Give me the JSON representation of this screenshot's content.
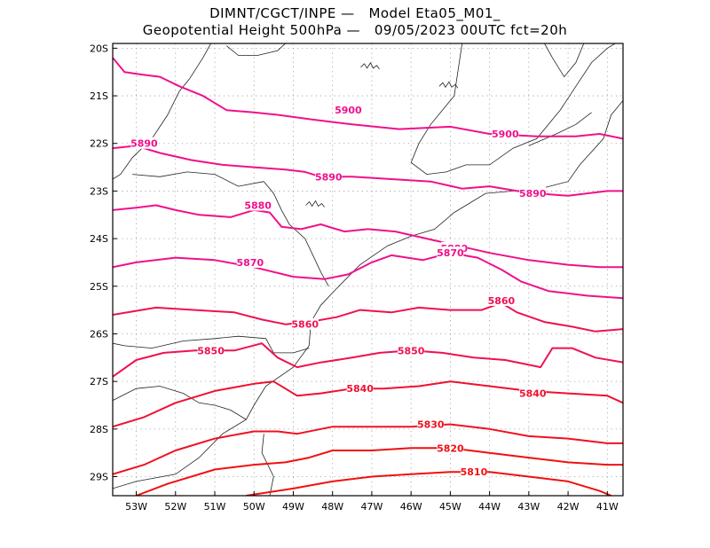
{
  "title": {
    "line1": "DIMNT/CGCT/INPE —   Model Eta05_M01_",
    "line2": "Geopotential Height 500hPa —   09/05/2023 00UTC fct=20h"
  },
  "axes": {
    "lat_labels": [
      "20S",
      "21S",
      "22S",
      "23S",
      "24S",
      "25S",
      "26S",
      "27S",
      "28S",
      "29S"
    ],
    "lon_labels": [
      "53W",
      "52W",
      "51W",
      "50W",
      "49W",
      "48W",
      "47W",
      "46W",
      "45W",
      "44W",
      "43W",
      "42W",
      "41W"
    ]
  },
  "chart_data": {
    "type": "contour-map",
    "variable": "Geopotential Height 500hPa",
    "lon_range": [
      -53.6,
      -40.6
    ],
    "lat_range": [
      -29.4,
      -19.9
    ],
    "grid": true,
    "colors": {
      "5900": "#f0108c",
      "5890": "#f0108c",
      "5880": "#f0108c",
      "5870": "#f0108c",
      "5860": "#f01050",
      "5850": "#f01050",
      "5840": "#f01030",
      "5830": "#f01020",
      "5820": "#f01010",
      "5810": "#f01010"
    },
    "contours": [
      {
        "level": 5900,
        "label": "5900",
        "label_positions": [
          [
            -47.6,
            -21.3
          ],
          [
            -43.6,
            -21.8
          ]
        ],
        "points": [
          [
            -53.6,
            -20.2
          ],
          [
            -53.3,
            -20.5
          ],
          [
            -52.9,
            -20.55
          ],
          [
            -52.4,
            -20.6
          ],
          [
            -51.9,
            -20.8
          ],
          [
            -51.3,
            -21.0
          ],
          [
            -50.7,
            -21.3
          ],
          [
            -50.0,
            -21.35
          ],
          [
            -49.4,
            -21.4
          ],
          [
            -48.5,
            -21.5
          ],
          [
            -47.5,
            -21.6
          ],
          [
            -46.3,
            -21.7
          ],
          [
            -45.0,
            -21.65
          ],
          [
            -44.0,
            -21.8
          ],
          [
            -42.8,
            -21.85
          ],
          [
            -41.8,
            -21.85
          ],
          [
            -41.2,
            -21.8
          ],
          [
            -40.6,
            -21.9
          ]
        ]
      },
      {
        "level": 5890,
        "label": "5890",
        "label_positions": [
          [
            -52.8,
            -22.0
          ],
          [
            -48.1,
            -22.7
          ],
          [
            -42.9,
            -23.05
          ]
        ],
        "points": [
          [
            -53.6,
            -22.1
          ],
          [
            -53.0,
            -22.05
          ],
          [
            -52.4,
            -22.2
          ],
          [
            -51.6,
            -22.35
          ],
          [
            -50.8,
            -22.45
          ],
          [
            -50.0,
            -22.5
          ],
          [
            -49.2,
            -22.55
          ],
          [
            -48.7,
            -22.6
          ],
          [
            -48.3,
            -22.7
          ],
          [
            -47.5,
            -22.7
          ],
          [
            -46.5,
            -22.75
          ],
          [
            -45.5,
            -22.8
          ],
          [
            -44.7,
            -22.95
          ],
          [
            -44.0,
            -22.9
          ],
          [
            -43.3,
            -23.0
          ],
          [
            -42.8,
            -23.05
          ],
          [
            -42.0,
            -23.1
          ],
          [
            -41.0,
            -23.0
          ],
          [
            -40.6,
            -23.0
          ]
        ]
      },
      {
        "level": 5880,
        "label": "5880",
        "label_positions": [
          [
            -49.9,
            -23.3
          ],
          [
            -44.9,
            -24.2
          ]
        ],
        "points": [
          [
            -53.6,
            -23.4
          ],
          [
            -53.0,
            -23.35
          ],
          [
            -52.5,
            -23.3
          ],
          [
            -52.0,
            -23.4
          ],
          [
            -51.4,
            -23.5
          ],
          [
            -50.6,
            -23.55
          ],
          [
            -50.0,
            -23.4
          ],
          [
            -49.6,
            -23.45
          ],
          [
            -49.3,
            -23.75
          ],
          [
            -48.8,
            -23.8
          ],
          [
            -48.3,
            -23.7
          ],
          [
            -47.7,
            -23.85
          ],
          [
            -47.1,
            -23.8
          ],
          [
            -46.4,
            -23.85
          ],
          [
            -45.6,
            -24.0
          ],
          [
            -44.8,
            -24.15
          ],
          [
            -44.0,
            -24.3
          ],
          [
            -43.0,
            -24.45
          ],
          [
            -42.0,
            -24.55
          ],
          [
            -41.2,
            -24.6
          ],
          [
            -40.6,
            -24.6
          ]
        ]
      },
      {
        "level": 5870,
        "label": "5870",
        "label_positions": [
          [
            -50.1,
            -24.5
          ],
          [
            -45.0,
            -24.3
          ]
        ],
        "points": [
          [
            -53.6,
            -24.6
          ],
          [
            -53.0,
            -24.5
          ],
          [
            -52.0,
            -24.4
          ],
          [
            -51.0,
            -24.45
          ],
          [
            -50.0,
            -24.6
          ],
          [
            -49.0,
            -24.8
          ],
          [
            -48.2,
            -24.85
          ],
          [
            -47.6,
            -24.75
          ],
          [
            -47.0,
            -24.5
          ],
          [
            -46.5,
            -24.35
          ],
          [
            -45.7,
            -24.45
          ],
          [
            -45.0,
            -24.3
          ],
          [
            -44.3,
            -24.4
          ],
          [
            -43.7,
            -24.65
          ],
          [
            -43.2,
            -24.9
          ],
          [
            -42.5,
            -25.1
          ],
          [
            -41.5,
            -25.2
          ],
          [
            -40.6,
            -25.25
          ]
        ]
      },
      {
        "level": 5860,
        "label": "5860",
        "label_positions": [
          [
            -48.7,
            -25.8
          ],
          [
            -43.7,
            -25.3
          ]
        ],
        "points": [
          [
            -53.6,
            -25.6
          ],
          [
            -52.5,
            -25.45
          ],
          [
            -51.5,
            -25.5
          ],
          [
            -50.5,
            -25.55
          ],
          [
            -49.8,
            -25.7
          ],
          [
            -49.2,
            -25.8
          ],
          [
            -48.6,
            -25.75
          ],
          [
            -47.9,
            -25.65
          ],
          [
            -47.3,
            -25.5
          ],
          [
            -46.5,
            -25.55
          ],
          [
            -45.8,
            -25.45
          ],
          [
            -45.0,
            -25.5
          ],
          [
            -44.2,
            -25.5
          ],
          [
            -43.7,
            -25.35
          ],
          [
            -43.3,
            -25.55
          ],
          [
            -42.6,
            -25.75
          ],
          [
            -41.9,
            -25.85
          ],
          [
            -41.3,
            -25.95
          ],
          [
            -40.6,
            -25.9
          ]
        ]
      },
      {
        "level": 5850,
        "label": "5850",
        "label_positions": [
          [
            -51.1,
            -26.35
          ],
          [
            -46.0,
            -26.35
          ]
        ],
        "points": [
          [
            -53.6,
            -26.9
          ],
          [
            -53.0,
            -26.55
          ],
          [
            -52.3,
            -26.4
          ],
          [
            -51.5,
            -26.35
          ],
          [
            -50.5,
            -26.35
          ],
          [
            -49.8,
            -26.2
          ],
          [
            -49.4,
            -26.5
          ],
          [
            -48.9,
            -26.7
          ],
          [
            -48.3,
            -26.6
          ],
          [
            -47.5,
            -26.5
          ],
          [
            -46.8,
            -26.4
          ],
          [
            -46.0,
            -26.35
          ],
          [
            -45.2,
            -26.4
          ],
          [
            -44.4,
            -26.5
          ],
          [
            -43.6,
            -26.55
          ],
          [
            -43.0,
            -26.65
          ],
          [
            -42.7,
            -26.7
          ],
          [
            -42.4,
            -26.3
          ],
          [
            -41.9,
            -26.3
          ],
          [
            -41.3,
            -26.5
          ],
          [
            -40.6,
            -26.6
          ]
        ]
      },
      {
        "level": 5840,
        "label": "5840",
        "label_positions": [
          [
            -47.3,
            -27.15
          ],
          [
            -42.9,
            -27.25
          ]
        ],
        "points": [
          [
            -53.6,
            -27.95
          ],
          [
            -52.8,
            -27.75
          ],
          [
            -52.0,
            -27.45
          ],
          [
            -51.0,
            -27.2
          ],
          [
            -50.0,
            -27.05
          ],
          [
            -49.5,
            -27.0
          ],
          [
            -48.9,
            -27.3
          ],
          [
            -48.3,
            -27.25
          ],
          [
            -47.5,
            -27.15
          ],
          [
            -46.7,
            -27.15
          ],
          [
            -45.8,
            -27.1
          ],
          [
            -45.0,
            -27.0
          ],
          [
            -44.0,
            -27.1
          ],
          [
            -43.0,
            -27.2
          ],
          [
            -42.0,
            -27.25
          ],
          [
            -41.0,
            -27.3
          ],
          [
            -40.6,
            -27.45
          ]
        ]
      },
      {
        "level": 5830,
        "label": "5830",
        "label_positions": [
          [
            -45.5,
            -27.9
          ]
        ],
        "points": [
          [
            -53.6,
            -28.95
          ],
          [
            -52.8,
            -28.75
          ],
          [
            -52.0,
            -28.45
          ],
          [
            -51.0,
            -28.2
          ],
          [
            -50.0,
            -28.05
          ],
          [
            -49.4,
            -28.05
          ],
          [
            -48.9,
            -28.1
          ],
          [
            -48.0,
            -27.95
          ],
          [
            -47.0,
            -27.95
          ],
          [
            -46.0,
            -27.95
          ],
          [
            -45.0,
            -27.9
          ],
          [
            -44.0,
            -28.0
          ],
          [
            -43.0,
            -28.15
          ],
          [
            -42.0,
            -28.2
          ],
          [
            -41.0,
            -28.3
          ],
          [
            -40.6,
            -28.3
          ]
        ]
      },
      {
        "level": 5820,
        "label": "5820",
        "label_positions": [
          [
            -45.0,
            -28.4
          ]
        ],
        "points": [
          [
            -53.0,
            -29.4
          ],
          [
            -52.2,
            -29.15
          ],
          [
            -51.0,
            -28.85
          ],
          [
            -50.0,
            -28.75
          ],
          [
            -49.2,
            -28.7
          ],
          [
            -48.6,
            -28.6
          ],
          [
            -48.0,
            -28.45
          ],
          [
            -47.0,
            -28.45
          ],
          [
            -46.0,
            -28.4
          ],
          [
            -45.0,
            -28.4
          ],
          [
            -44.0,
            -28.5
          ],
          [
            -43.0,
            -28.6
          ],
          [
            -42.0,
            -28.7
          ],
          [
            -41.0,
            -28.75
          ],
          [
            -40.6,
            -28.75
          ]
        ]
      },
      {
        "level": 5810,
        "label": "5810",
        "label_positions": [
          [
            -44.4,
            -28.9
          ]
        ],
        "points": [
          [
            -50.2,
            -29.4
          ],
          [
            -49.0,
            -29.25
          ],
          [
            -48.0,
            -29.1
          ],
          [
            -47.0,
            -29.0
          ],
          [
            -46.0,
            -28.95
          ],
          [
            -45.0,
            -28.9
          ],
          [
            -44.0,
            -28.9
          ],
          [
            -43.0,
            -29.0
          ],
          [
            -42.0,
            -29.1
          ],
          [
            -41.2,
            -29.3
          ],
          [
            -40.9,
            -29.4
          ]
        ]
      }
    ]
  }
}
